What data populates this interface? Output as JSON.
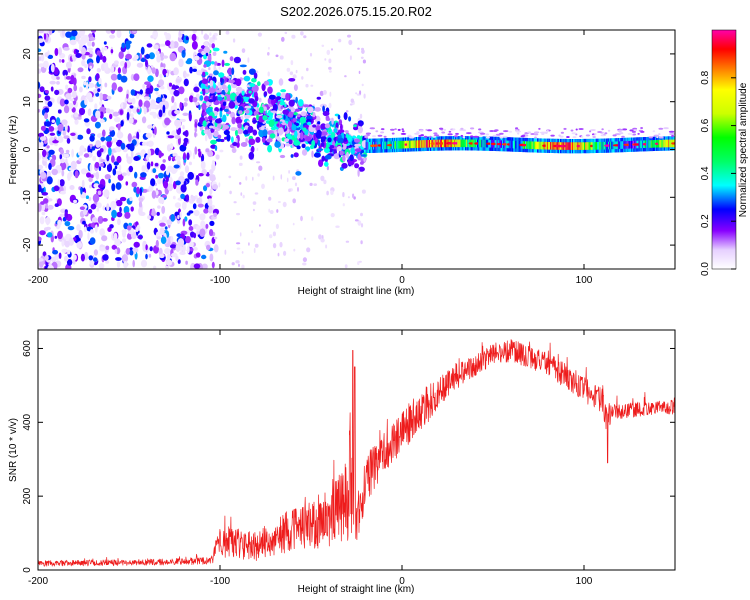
{
  "figure_title": "S202.2026.075.15.20.R02",
  "colors": {
    "snr_line": "#ee1c1c",
    "axis": "#000000",
    "colormap": [
      "#ffffff",
      "#d9b8ff",
      "#8800ff",
      "#0000ff",
      "#00ffff",
      "#00ff00",
      "#ffff00",
      "#ff8800",
      "#ff0000",
      "#ff00aa"
    ]
  },
  "chart_data": [
    {
      "type": "heatmap",
      "title": "",
      "xlabel": "Height of straight line (km)",
      "ylabel": "Frequency (Hz)",
      "xlim": [
        -200,
        150
      ],
      "ylim": [
        -25,
        25
      ],
      "xticks": [
        -200,
        -100,
        0,
        100
      ],
      "yticks": [
        -20,
        -10,
        0,
        10,
        20
      ],
      "xtick_labels": [
        "-200",
        "-100",
        "0",
        "100"
      ],
      "ytick_labels": [
        "-20",
        "-10",
        "0",
        "10",
        "20"
      ],
      "colorbar": {
        "label": "Normalized spectral amplitude",
        "range": [
          0,
          1
        ],
        "ticks": [
          0.0,
          0.2,
          0.4,
          0.6,
          0.8
        ],
        "tick_labels": [
          "0.0",
          "0.2",
          "0.4",
          "0.6",
          "0.8"
        ]
      },
      "regions": [
        {
          "x_range": [
            -200,
            -110
          ],
          "description": "diffuse noise across full frequency band, amplitude 0.05-0.3"
        },
        {
          "x_range": [
            -110,
            -20
          ],
          "freq_center": [
            12,
            0
          ],
          "freq_spread": [
            5,
            2
          ],
          "amplitude": [
            0.2,
            0.4
          ]
        },
        {
          "x_range": [
            -20,
            150
          ],
          "freq_center": 1,
          "freq_spread": 0.7,
          "amplitude": [
            0.6,
            1.0
          ]
        }
      ]
    },
    {
      "type": "line",
      "title": "",
      "xlabel": "Height of straight line (km)",
      "ylabel": "SNR (10 * v/v)",
      "xlim": [
        -200,
        150
      ],
      "ylim": [
        0,
        650
      ],
      "xticks": [
        -200,
        -100,
        0,
        100
      ],
      "yticks": [
        0,
        200,
        400,
        600
      ],
      "xtick_labels": [
        "-200",
        "-100",
        "0",
        "100"
      ],
      "ytick_labels": [
        "0",
        "200",
        "400",
        "600"
      ],
      "series": [
        {
          "name": "SNR",
          "envelope_x": [
            -200,
            -150,
            -105,
            -100,
            -80,
            -60,
            -40,
            -30,
            -28,
            -25,
            -20,
            -10,
            0,
            10,
            20,
            30,
            40,
            50,
            60,
            70,
            80,
            90,
            100,
            110,
            113,
            115,
            120,
            130,
            140,
            150
          ],
          "envelope_y": [
            18,
            20,
            25,
            80,
            65,
            110,
            140,
            190,
            280,
            120,
            240,
            320,
            375,
            430,
            475,
            525,
            555,
            585,
            595,
            575,
            560,
            525,
            490,
            455,
            390,
            430,
            430,
            435,
            440,
            440
          ],
          "noise_amplitude": [
            8,
            8,
            10,
            45,
            40,
            60,
            80,
            110,
            200,
            60,
            60,
            60,
            55,
            55,
            45,
            35,
            30,
            30,
            30,
            30,
            30,
            35,
            35,
            35,
            40,
            25,
            20,
            20,
            20,
            20
          ],
          "spikes": [
            {
              "x": -27,
              "y": 595
            },
            {
              "x": -26,
              "y": 550
            },
            {
              "x": 113,
              "y": 290
            }
          ]
        }
      ]
    }
  ]
}
